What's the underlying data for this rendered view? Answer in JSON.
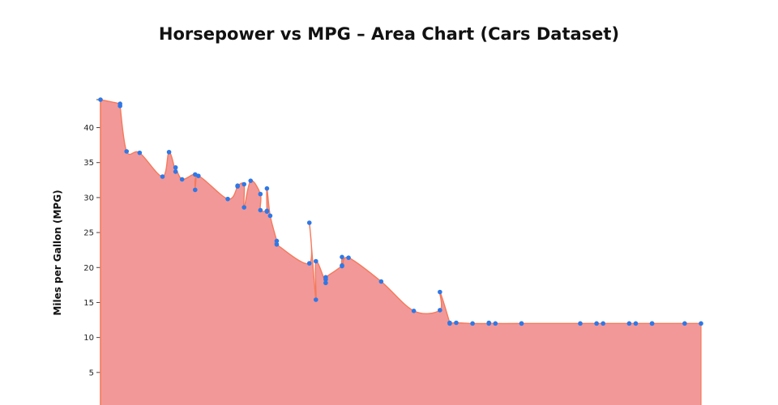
{
  "chart_data": {
    "type": "area",
    "title": "Horsepower vs MPG – Area Chart (Cars Dataset)",
    "xlabel": "",
    "ylabel": "Miles per Gallon (MPG)",
    "ylim": [
      0,
      44
    ],
    "yticks": [
      5,
      10,
      15,
      20,
      25,
      30,
      35,
      40
    ],
    "xlim": [
      46,
      230
    ],
    "x": [
      46,
      52,
      52,
      54,
      58,
      65,
      67,
      69,
      69,
      71,
      75,
      75,
      76,
      85,
      88,
      88,
      90,
      90,
      92,
      95,
      95,
      97,
      97,
      97,
      98,
      100,
      100,
      110,
      110,
      112,
      112,
      115,
      115,
      115,
      120,
      120,
      120,
      122,
      132,
      142,
      150,
      150,
      153,
      153,
      155,
      160,
      165,
      165,
      167,
      175,
      175,
      193,
      198,
      200,
      208,
      210,
      215,
      215,
      225,
      230
    ],
    "y": [
      44.0,
      43.4,
      43.1,
      36.6,
      36.4,
      33.0,
      36.5,
      33.7,
      34.3,
      32.6,
      33.3,
      31.1,
      33.1,
      29.8,
      31.6,
      31.7,
      31.9,
      28.6,
      32.4,
      30.5,
      28.2,
      28.1,
      28.0,
      31.3,
      27.4,
      23.8,
      23.3,
      20.6,
      26.4,
      15.4,
      20.9,
      17.8,
      18.3,
      18.6,
      20.3,
      21.5,
      20.2,
      21.4,
      18.0,
      13.8,
      13.9,
      16.5,
      12.1,
      12.0,
      12.1,
      12.0,
      12.0,
      12.1,
      12.0,
      12.0,
      12.0,
      12.0,
      12.0,
      12.0,
      12.0,
      12.0,
      12.0,
      12.0,
      12.0,
      12.0
    ],
    "series": [
      {
        "name": "",
        "fill_color": "#f29898",
        "line_color": "#f47a5c",
        "marker_color": "#2f78e6"
      }
    ],
    "grid": false,
    "legend": "none"
  }
}
